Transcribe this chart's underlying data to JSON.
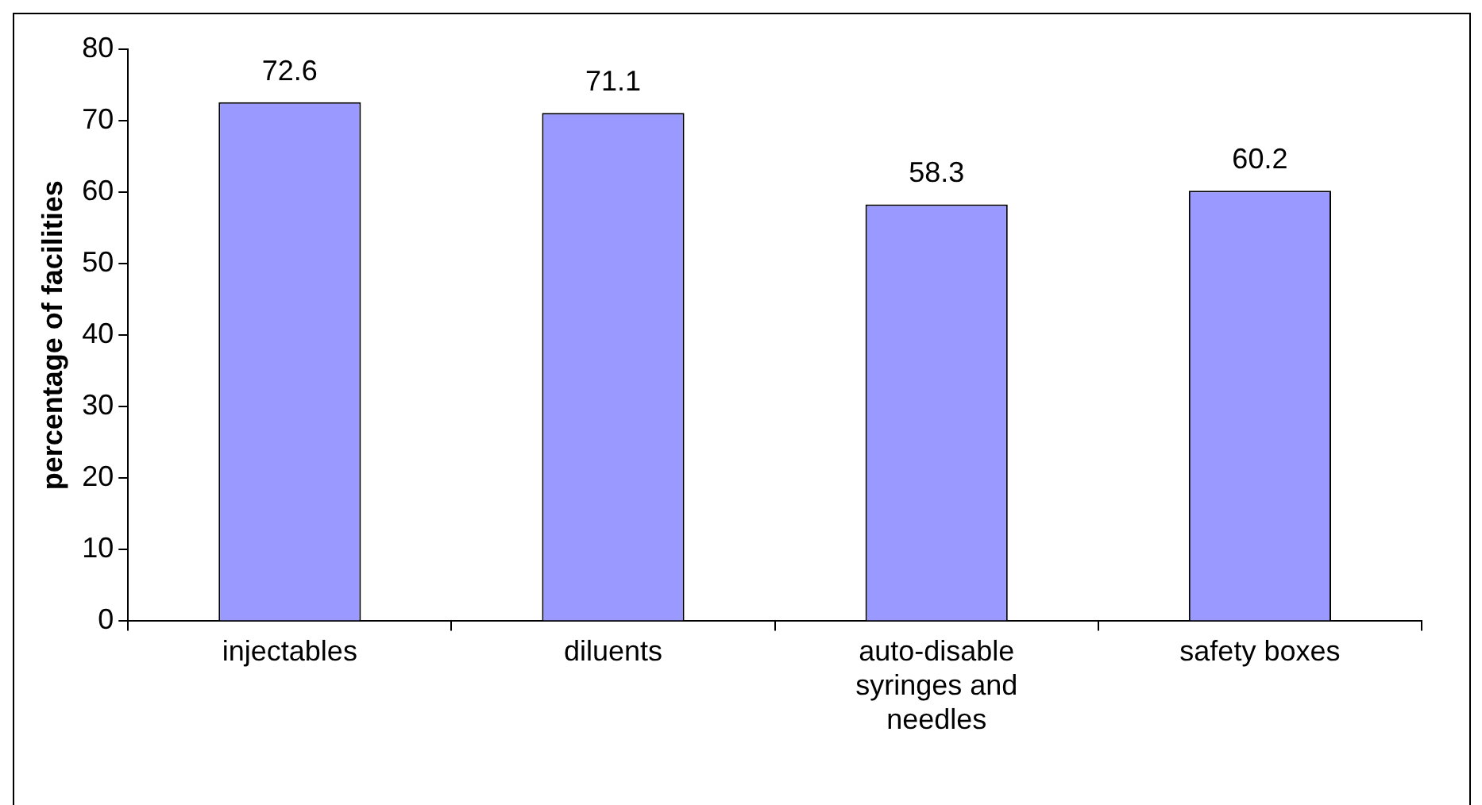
{
  "chart_data": {
    "type": "bar",
    "ylabel": "percentage of facilities",
    "categories": [
      "injectables",
      "diluents",
      "auto-disable syringes and needles",
      "safety boxes"
    ],
    "values": [
      72.6,
      71.1,
      58.3,
      60.2
    ],
    "color": "#9999ff",
    "ylim": [
      0,
      80
    ],
    "yticks": [
      0,
      10,
      20,
      30,
      40,
      50,
      60,
      70,
      80
    ],
    "grid": false,
    "legend": false,
    "data_labels": true
  }
}
